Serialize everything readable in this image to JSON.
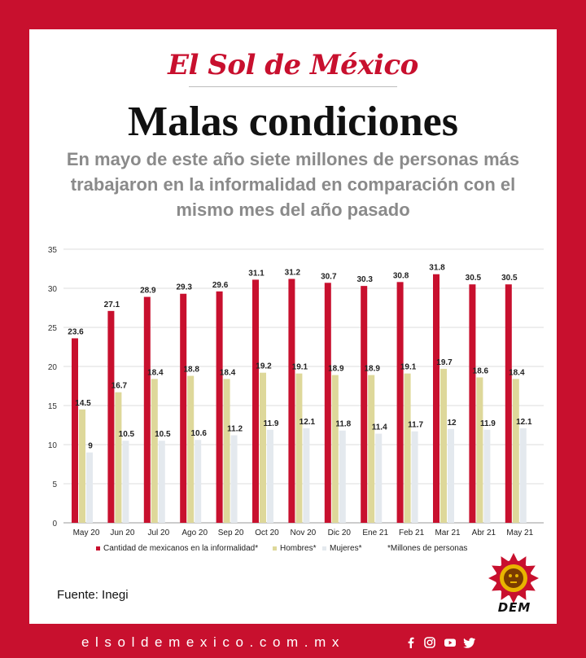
{
  "header": {
    "masthead": "El Sol de México",
    "title": "Malas condiciones",
    "subtitle": "En mayo de este año siete millones de personas más trabajaron en la informalidad en comparación con el mismo mes del año pasado"
  },
  "chart_data": {
    "type": "bar",
    "categories": [
      "May 20",
      "Jun 20",
      "Jul 20",
      "Ago 20",
      "Sep 20",
      "Oct 20",
      "Nov 20",
      "Dic 20",
      "Ene 21",
      "Feb 21",
      "Mar 21",
      "Abr 21",
      "May 21"
    ],
    "series": [
      {
        "name": "Cantidad de mexicanos en la informalidad*",
        "color": "#c8102e",
        "values": [
          23.6,
          27.1,
          28.9,
          29.3,
          29.6,
          31.1,
          31.2,
          30.7,
          30.3,
          30.8,
          31.8,
          30.5,
          30.5
        ]
      },
      {
        "name": "Hombres*",
        "color": "#ded89a",
        "values": [
          14.5,
          16.7,
          18.4,
          18.8,
          18.4,
          19.2,
          19.1,
          18.9,
          18.9,
          19.1,
          19.7,
          18.6,
          18.4
        ]
      },
      {
        "name": "Mujeres*",
        "color": "#e4e9ee",
        "values": [
          9,
          10.5,
          10.5,
          10.6,
          11.2,
          11.9,
          12.1,
          11.8,
          11.4,
          11.7,
          12,
          11.9,
          12.1
        ]
      }
    ],
    "yticks": [
      "0",
      "5",
      "10",
      "15",
      "20",
      "25",
      "30",
      "35"
    ],
    "ylim": [
      0,
      35
    ],
    "grid": true,
    "note": "*Millones de personas",
    "legend_position": "bottom"
  },
  "footer": {
    "source": "Fuente: Inegi",
    "logo_text": "DEM",
    "url": "elsoldemexico.com.mx",
    "social_icons": [
      "facebook-icon",
      "instagram-icon",
      "youtube-icon",
      "twitter-icon"
    ]
  }
}
